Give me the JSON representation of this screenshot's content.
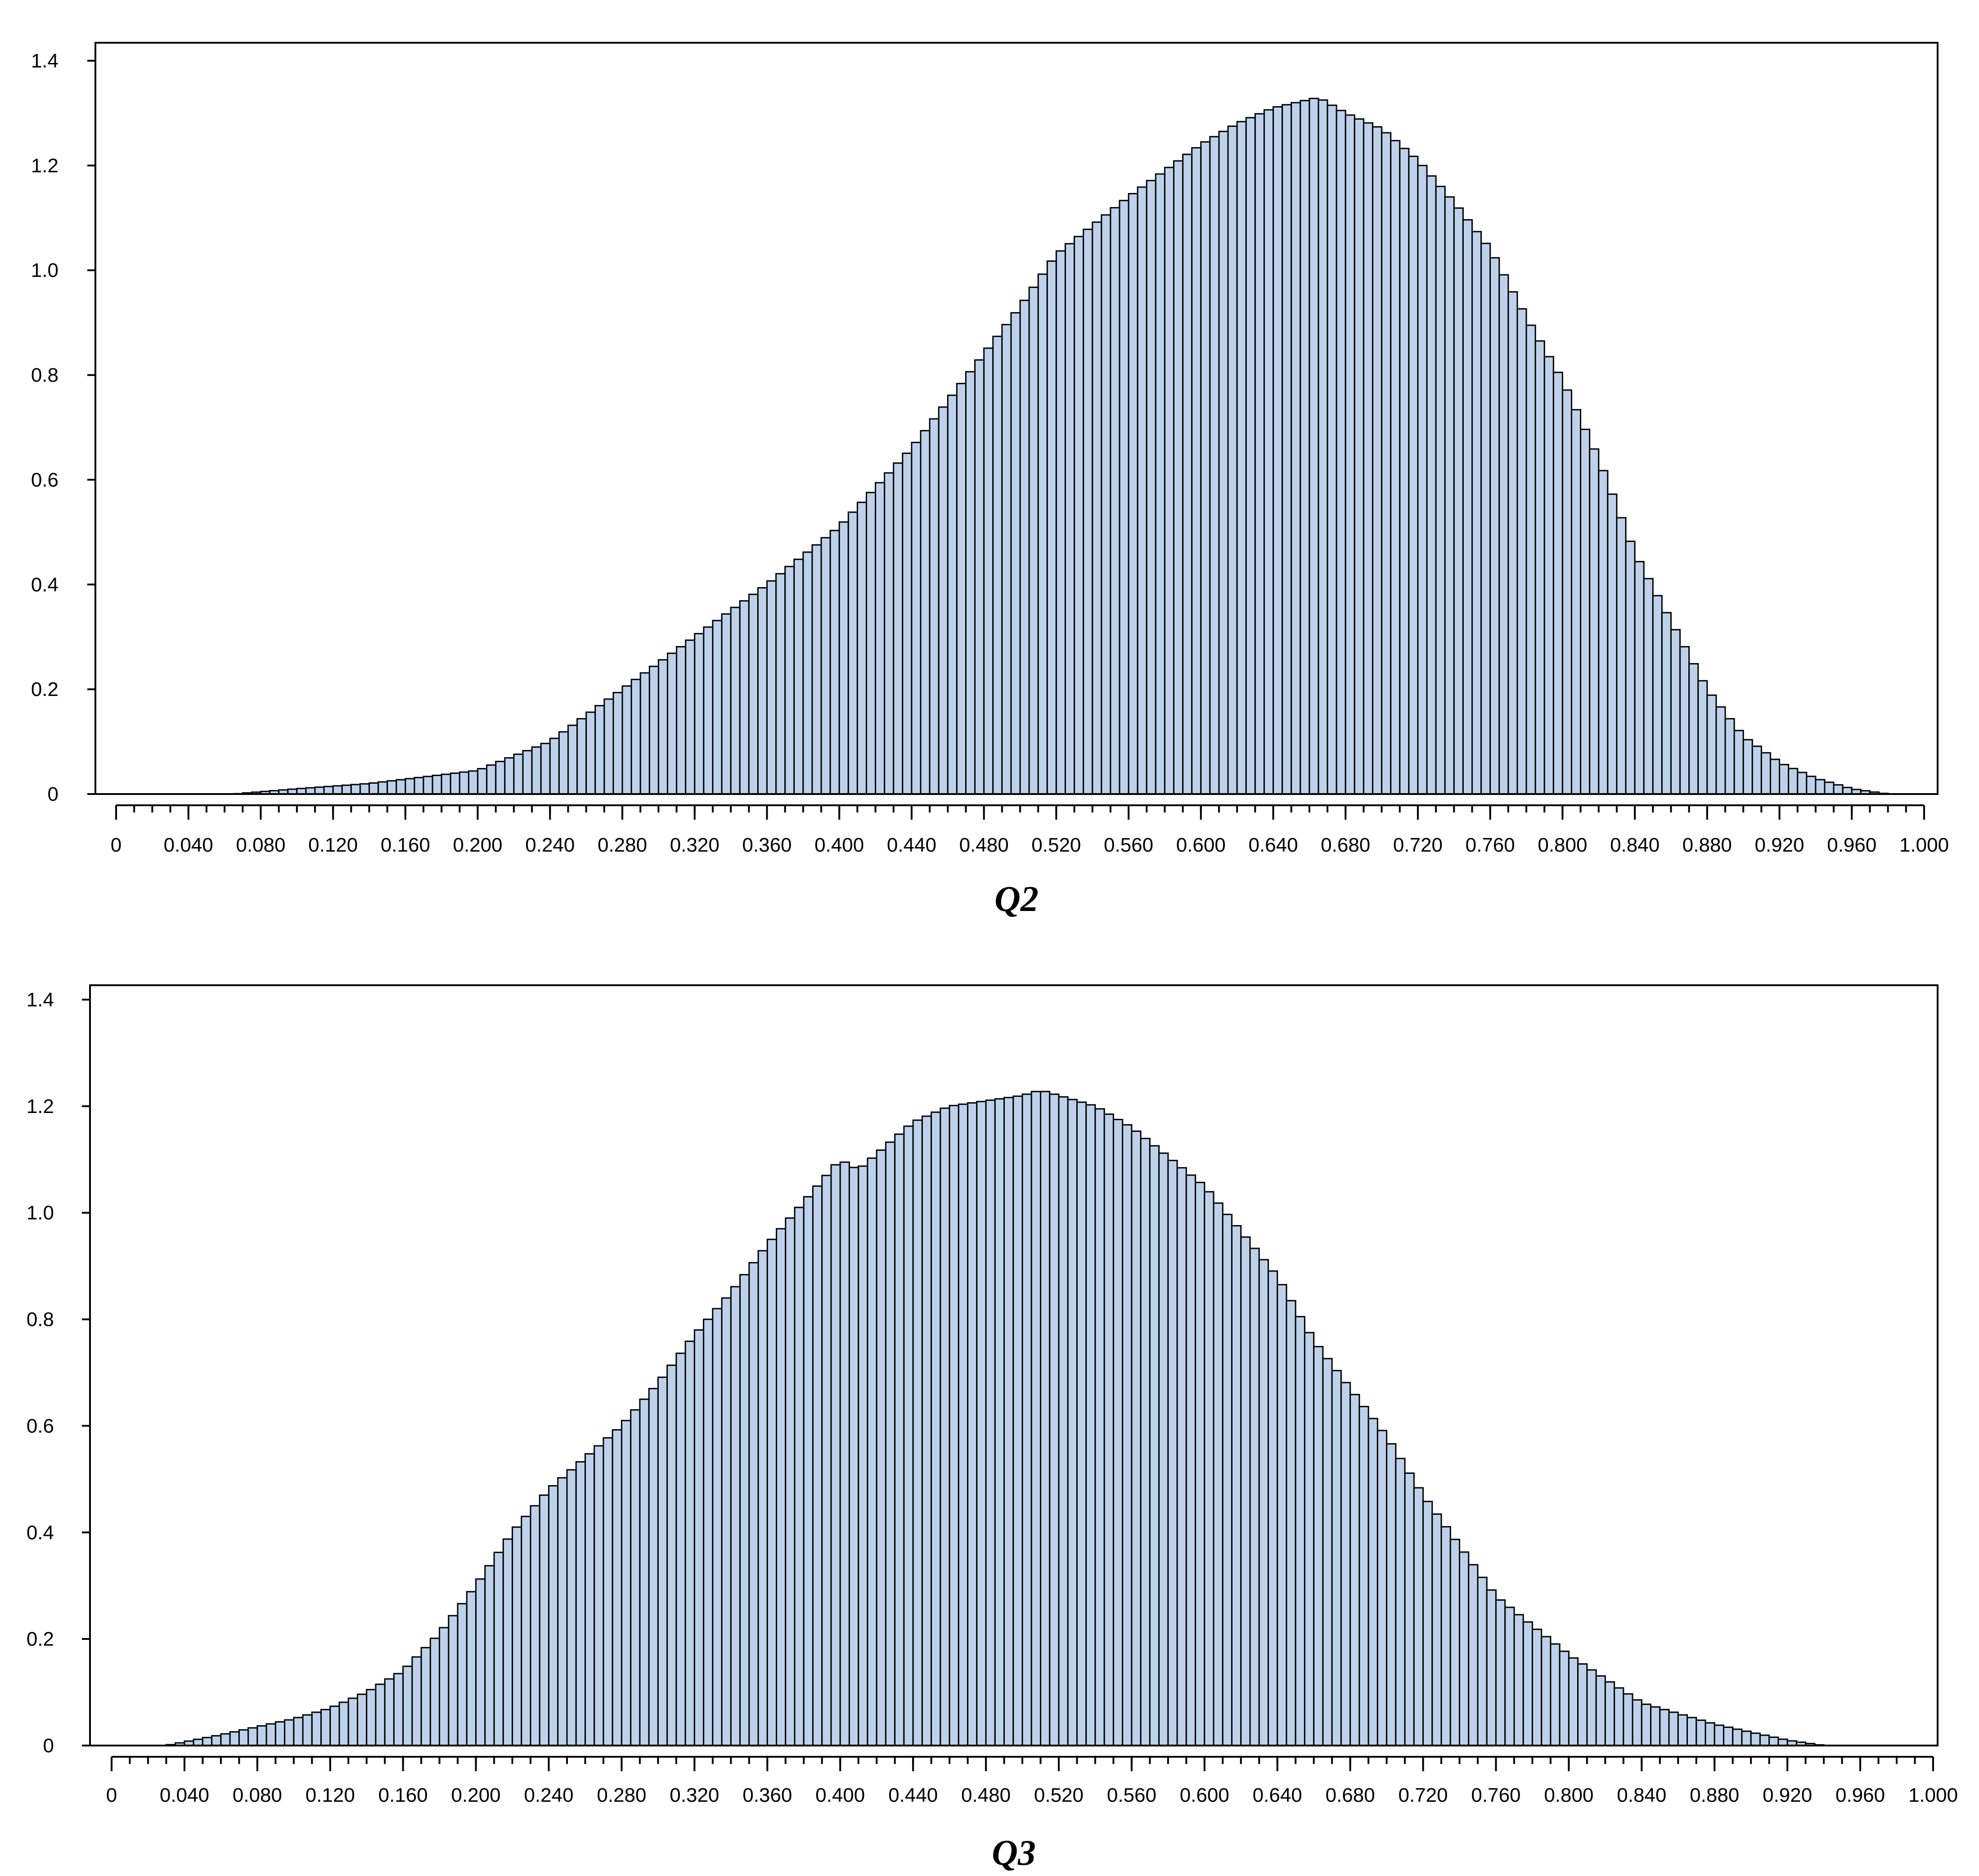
{
  "bar_color": "#bdd2ea",
  "edge_color": "#000000",
  "chart_data": [
    {
      "type": "bar",
      "xlabel": "Q2",
      "xlim": [
        0,
        1.0
      ],
      "ylim": [
        0,
        1.4
      ],
      "bin_width": 0.005,
      "x_tick_labels": [
        "0",
        "0.040",
        "0.080",
        "0.120",
        "0.160",
        "0.200",
        "0.240",
        "0.280",
        "0.320",
        "0.360",
        "0.400",
        "0.440",
        "0.480",
        "0.520",
        "0.560",
        "0.600",
        "0.640",
        "0.680",
        "0.720",
        "0.760",
        "0.800",
        "0.840",
        "0.880",
        "0.920",
        "0.960",
        "1.000"
      ],
      "y_tick_labels": [
        "0",
        "0.2",
        "0.4",
        "0.6",
        "0.8",
        "1.0",
        "1.2",
        "1.4"
      ],
      "anchor_x": [
        0.065,
        0.1,
        0.14,
        0.2,
        0.24,
        0.28,
        0.32,
        0.36,
        0.4,
        0.44,
        0.48,
        0.5,
        0.52,
        0.56,
        0.6,
        0.62,
        0.64,
        0.665,
        0.68,
        0.7,
        0.72,
        0.74,
        0.76,
        0.78,
        0.8,
        0.82,
        0.84,
        0.86,
        0.88,
        0.9,
        0.92,
        0.94,
        0.96,
        0.98
      ],
      "anchor_y": [
        0.0,
        0.01,
        0.02,
        0.045,
        0.1,
        0.2,
        0.3,
        0.4,
        0.51,
        0.66,
        0.84,
        0.93,
        1.03,
        1.14,
        1.24,
        1.28,
        1.31,
        1.33,
        1.3,
        1.27,
        1.21,
        1.13,
        1.04,
        0.91,
        0.79,
        0.64,
        0.46,
        0.33,
        0.2,
        0.11,
        0.06,
        0.03,
        0.01,
        0.0
      ]
    },
    {
      "type": "bar",
      "xlabel": "Q3",
      "xlim": [
        0,
        1.0
      ],
      "ylim": [
        0,
        1.4
      ],
      "bin_width": 0.005,
      "x_tick_labels": [
        "0",
        "0.040",
        "0.080",
        "0.120",
        "0.160",
        "0.200",
        "0.240",
        "0.280",
        "0.320",
        "0.360",
        "0.400",
        "0.440",
        "0.480",
        "0.520",
        "0.560",
        "0.600",
        "0.640",
        "0.680",
        "0.720",
        "0.760",
        "0.800",
        "0.840",
        "0.880",
        "0.920",
        "0.960",
        "1.000"
      ],
      "y_tick_labels": [
        "0",
        "0.2",
        "0.4",
        "0.6",
        "0.8",
        "1.0",
        "1.2",
        "1.4"
      ],
      "anchor_x": [
        0.03,
        0.06,
        0.08,
        0.1,
        0.12,
        0.14,
        0.16,
        0.18,
        0.2,
        0.22,
        0.24,
        0.28,
        0.3,
        0.32,
        0.34,
        0.36,
        0.38,
        0.4,
        0.41,
        0.44,
        0.46,
        0.48,
        0.5,
        0.51,
        0.54,
        0.56,
        0.6,
        0.64,
        0.66,
        0.7,
        0.72,
        0.76,
        0.8,
        0.84,
        0.88,
        0.92,
        0.94
      ],
      "anchor_y": [
        0.0,
        0.02,
        0.035,
        0.05,
        0.07,
        0.1,
        0.14,
        0.21,
        0.3,
        0.4,
        0.48,
        0.6,
        0.68,
        0.77,
        0.85,
        0.94,
        1.02,
        1.1,
        1.08,
        1.17,
        1.2,
        1.21,
        1.22,
        1.23,
        1.2,
        1.16,
        1.05,
        0.88,
        0.76,
        0.58,
        0.47,
        0.28,
        0.17,
        0.08,
        0.04,
        0.01,
        0.0
      ]
    }
  ]
}
